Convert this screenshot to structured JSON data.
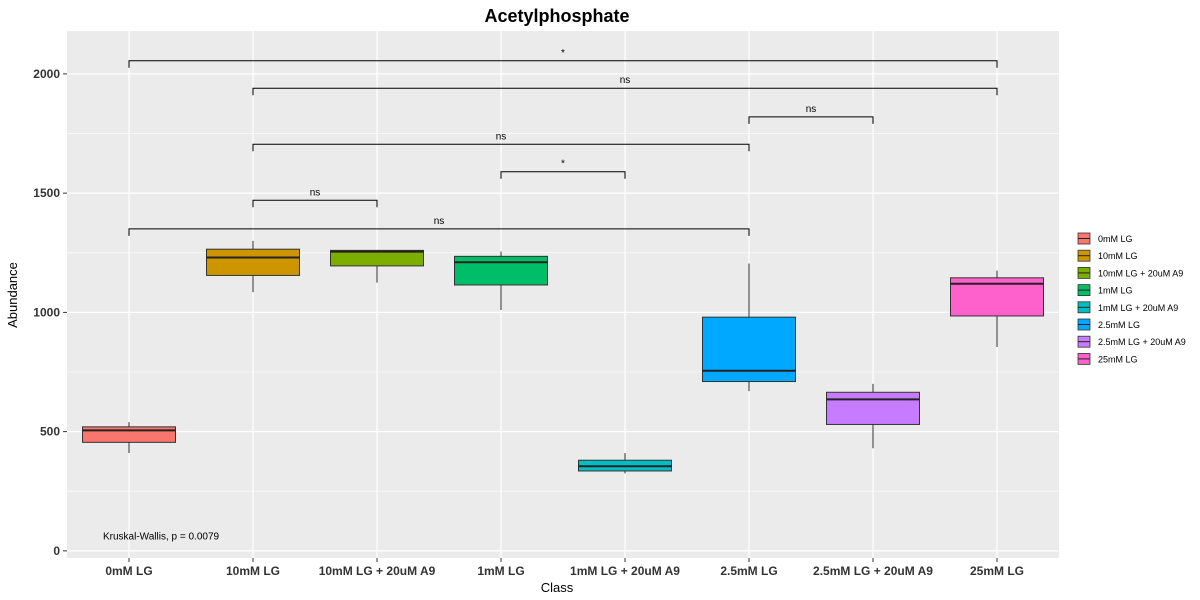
{
  "chart_data": {
    "type": "box",
    "title": "Acetylphosphate",
    "xlabel": "Class",
    "ylabel": "Abundance",
    "ylim": [
      -30,
      2180
    ],
    "yticks": [
      0,
      500,
      1000,
      1500,
      2000
    ],
    "grid": true,
    "legend_placement": "right",
    "categories": [
      "0mM LG",
      "10mM LG",
      "10mM LG + 20uM A9",
      "1mM LG",
      "1mM LG + 20uM A9",
      "2.5mM LG",
      "2.5mM LG + 20uM A9",
      "25mM LG"
    ],
    "series": [
      {
        "name": "0mM LG",
        "color": "#F8766D",
        "whisker_low": 410,
        "q1": 455,
        "median": 505,
        "q3": 520,
        "whisker_high": 540
      },
      {
        "name": "10mM LG",
        "color": "#CD9600",
        "whisker_low": 1085,
        "q1": 1155,
        "median": 1230,
        "q3": 1265,
        "whisker_high": 1300
      },
      {
        "name": "10mM LG + 20uM A9",
        "color": "#7CAE00",
        "whisker_low": 1125,
        "q1": 1195,
        "median": 1255,
        "q3": 1260,
        "whisker_high": 1260
      },
      {
        "name": "1mM LG",
        "color": "#00BE67",
        "whisker_low": 1010,
        "q1": 1115,
        "median": 1210,
        "q3": 1235,
        "whisker_high": 1255
      },
      {
        "name": "1mM LG + 20uM A9",
        "color": "#00BFC4",
        "whisker_low": 325,
        "q1": 335,
        "median": 355,
        "q3": 380,
        "whisker_high": 410
      },
      {
        "name": "2.5mM LG",
        "color": "#00A9FF",
        "whisker_low": 670,
        "q1": 710,
        "median": 755,
        "q3": 980,
        "whisker_high": 1205
      },
      {
        "name": "2.5mM LG + 20uM A9",
        "color": "#C77CFF",
        "whisker_low": 430,
        "q1": 530,
        "median": 635,
        "q3": 665,
        "whisker_high": 700
      },
      {
        "name": "25mM LG",
        "color": "#FF61CC",
        "whisker_low": 855,
        "q1": 985,
        "median": 1120,
        "q3": 1145,
        "whisker_high": 1175
      }
    ],
    "comparisons": [
      {
        "from": 0,
        "to": 7,
        "y": 2055,
        "label": "*"
      },
      {
        "from": 1,
        "to": 7,
        "y": 1940,
        "label": "ns"
      },
      {
        "from": 5,
        "to": 6,
        "y": 1820,
        "label": "ns"
      },
      {
        "from": 1,
        "to": 5,
        "y": 1705,
        "label": "ns"
      },
      {
        "from": 3,
        "to": 4,
        "y": 1590,
        "label": "*"
      },
      {
        "from": 1,
        "to": 2,
        "y": 1470,
        "label": "ns"
      },
      {
        "from": 0,
        "to": 5,
        "y": 1350,
        "label": "ns"
      }
    ],
    "annotations": [
      {
        "text": "Kruskal-Wallis, p = 0.0079",
        "x": 0,
        "y": 60
      }
    ]
  }
}
